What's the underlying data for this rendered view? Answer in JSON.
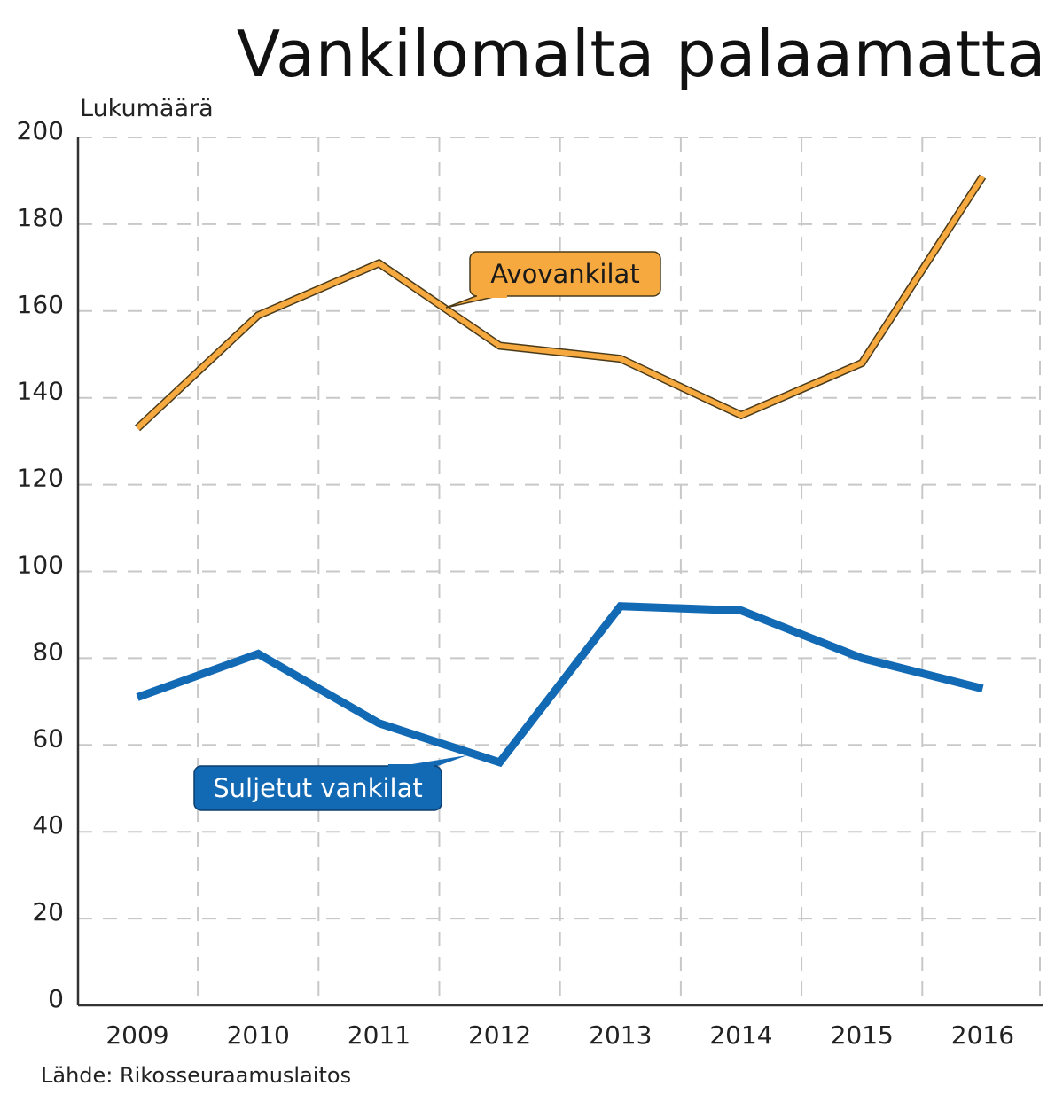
{
  "chart_data": {
    "type": "line",
    "title": "Vankilomalta palaamatta",
    "ylabel": "Lukumäärä",
    "xlabel": "",
    "categories": [
      "2009",
      "2010",
      "2011",
      "2012",
      "2013",
      "2014",
      "2015",
      "2016"
    ],
    "ylim": [
      0,
      200
    ],
    "yticks": [
      0,
      20,
      40,
      60,
      80,
      100,
      120,
      140,
      160,
      180,
      200
    ],
    "grid": true,
    "series": [
      {
        "name": "Avovankilat",
        "values": [
          133,
          159,
          171,
          152,
          149,
          136,
          148,
          191
        ],
        "color": "#f5a93e",
        "outline": "#4a3a1a"
      },
      {
        "name": "Suljetut vankilat",
        "values": [
          71,
          81,
          65,
          56,
          92,
          91,
          80,
          73
        ],
        "color": "#1269b4"
      }
    ],
    "source": "Lähde: Rikosseuraamuslaitos"
  }
}
